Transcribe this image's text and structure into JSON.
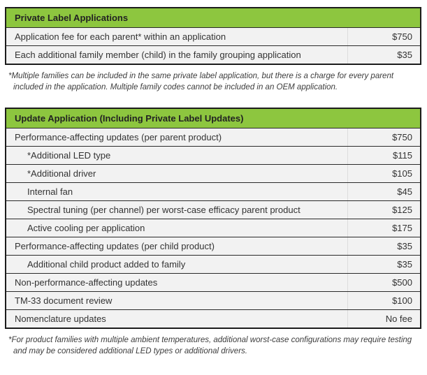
{
  "colors": {
    "header_green": "#8dc63f",
    "row_background": "#f2f2f2",
    "border_dark": "#1c1c1c",
    "text_dark": "#333333"
  },
  "tables": [
    {
      "header": "Private Label Applications",
      "rows": [
        {
          "label": "Application fee for each parent* within an application",
          "fee": "$750",
          "indent": false
        },
        {
          "label": "Each additional family member (child) in the family grouping application",
          "fee": "$35",
          "indent": false
        }
      ],
      "footnote": "*Multiple families can be included in the same private label application, but there is a charge for every parent included in the application. Multiple family codes cannot be included in an OEM application."
    },
    {
      "header": "Update Application (Including Private Label Updates)",
      "rows": [
        {
          "label": "Performance-affecting updates (per parent product)",
          "fee": "$750",
          "indent": false
        },
        {
          "label": "*Additional LED type",
          "fee": "$115",
          "indent": true
        },
        {
          "label": "*Additional driver",
          "fee": "$105",
          "indent": true
        },
        {
          "label": "Internal fan",
          "fee": "$45",
          "indent": true
        },
        {
          "label": "Spectral tuning (per channel) per worst-case efficacy parent product",
          "fee": "$125",
          "indent": true
        },
        {
          "label": "Active cooling per application",
          "fee": "$175",
          "indent": true
        },
        {
          "label": "Performance-affecting updates (per child product)",
          "fee": "$35",
          "indent": false
        },
        {
          "label": "Additional child product added to family",
          "fee": "$35",
          "indent": true
        },
        {
          "label": "Non-performance-affecting updates",
          "fee": "$500",
          "indent": false
        },
        {
          "label": "TM-33 document review",
          "fee": "$100",
          "indent": false
        },
        {
          "label": "Nomenclature updates",
          "fee": "No fee",
          "indent": false
        }
      ],
      "footnote": "*For product families with multiple ambient temperatures, additional worst-case configurations may require testing and may be considered additional LED types or additional drivers."
    }
  ]
}
